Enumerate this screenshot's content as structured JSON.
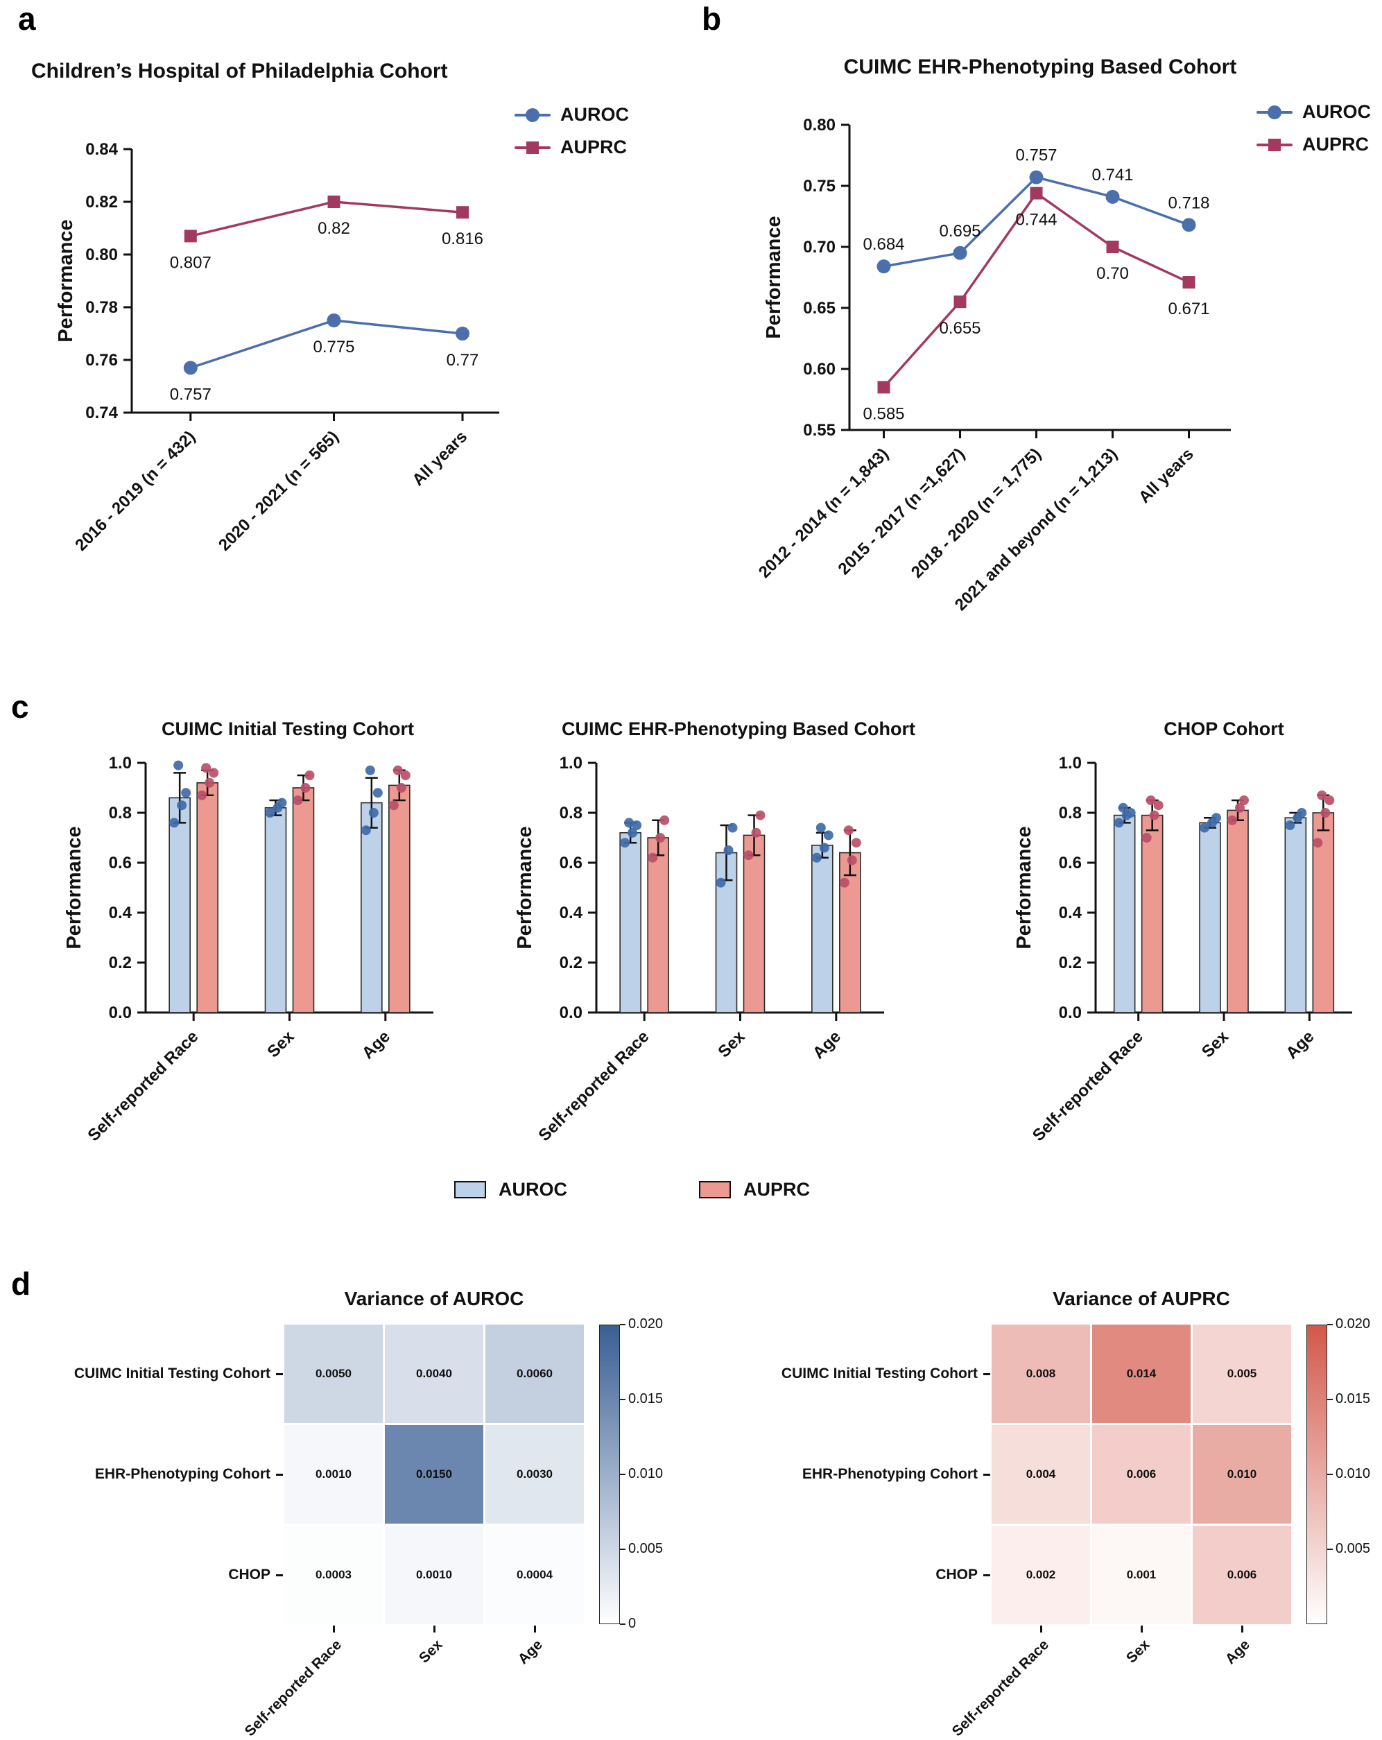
{
  "panel_labels": {
    "a": "a",
    "b": "b",
    "c": "c",
    "d": "d"
  },
  "colors": {
    "auroc_line": "#4a6fab",
    "auprc_line": "#a23a5e",
    "auroc_bar": "#bdd2e8",
    "auprc_bar": "#ec9991",
    "auroc_dot": "#3f6aa8",
    "auprc_dot": "#b94f68",
    "heatmap_blue_max": "#3a5f94",
    "heatmap_red_max": "#d2584a"
  },
  "legend_c": {
    "auroc": "AUROC",
    "auprc": "AUPRC"
  },
  "chart_data": [
    {
      "id": "a",
      "type": "line",
      "title": "Children’s Hospital of Philadelphia Cohort",
      "ylabel": "Performance",
      "ylim": [
        0.74,
        0.84
      ],
      "yticks": [
        "0.84",
        "0.82",
        "0.80",
        "0.78",
        "0.76",
        "0.74"
      ],
      "categories": [
        "2016 - 2019 (n = 432)",
        "2020 - 2021 (n = 565)",
        "All years"
      ],
      "legend_position": "top-right",
      "series": [
        {
          "name": "AUROC",
          "marker": "circle",
          "color": "#4a6fab",
          "values": [
            0.757,
            0.775,
            0.77
          ],
          "labels": [
            "0.757",
            "0.775",
            "0.77"
          ],
          "label_side": "below"
        },
        {
          "name": "AUPRC",
          "marker": "square",
          "color": "#a23a5e",
          "values": [
            0.807,
            0.82,
            0.816
          ],
          "labels": [
            "0.807",
            "0.82",
            "0.816"
          ],
          "label_side": "below"
        }
      ]
    },
    {
      "id": "b",
      "type": "line",
      "title": "CUIMC EHR-Phenotyping Based Cohort",
      "ylabel": "Performance",
      "ylim": [
        0.55,
        0.8
      ],
      "yticks": [
        "0.80",
        "0.75",
        "0.70",
        "0.65",
        "0.60",
        "0.55"
      ],
      "categories": [
        "2012 - 2014 (n = 1,843)",
        "2015 - 2017 (n =1,627)",
        "2018 - 2020 (n = 1,775)",
        "2021 and beyond (n = 1,213)",
        "All years"
      ],
      "legend_position": "top-right",
      "series": [
        {
          "name": "AUROC",
          "marker": "circle",
          "color": "#4a6fab",
          "values": [
            0.684,
            0.695,
            0.757,
            0.741,
            0.718
          ],
          "labels": [
            "0.684",
            "0.695",
            "0.757",
            "0.741",
            "0.718"
          ],
          "label_side": "above"
        },
        {
          "name": "AUPRC",
          "marker": "square",
          "color": "#a23a5e",
          "values": [
            0.585,
            0.655,
            0.744,
            0.7,
            0.671
          ],
          "labels": [
            "0.585",
            "0.655",
            "0.744",
            "0.70",
            "0.671"
          ],
          "label_side": "below"
        }
      ]
    },
    {
      "id": "c1",
      "type": "bar",
      "title": "CUIMC Initial Testing Cohort",
      "ylabel": "Performance",
      "ylim": [
        0,
        1.0
      ],
      "yticks": [
        "1.0",
        "0.8",
        "0.6",
        "0.4",
        "0.2",
        "0.0"
      ],
      "categories": [
        "Self-reported Race",
        "Sex",
        "Age"
      ],
      "series": [
        {
          "name": "AUROC",
          "color": "#bdd2e8",
          "dot_color": "#3f6aa8",
          "values": [
            0.86,
            0.82,
            0.84
          ],
          "errors": [
            0.1,
            0.03,
            0.1
          ],
          "points": [
            [
              0.76,
              0.83,
              0.88,
              0.99
            ],
            [
              0.8,
              0.82,
              0.84
            ],
            [
              0.73,
              0.8,
              0.88,
              0.97
            ]
          ]
        },
        {
          "name": "AUPRC",
          "color": "#ec9991",
          "dot_color": "#b94f68",
          "values": [
            0.92,
            0.9,
            0.91
          ],
          "errors": [
            0.05,
            0.05,
            0.06
          ],
          "points": [
            [
              0.87,
              0.92,
              0.96,
              0.98
            ],
            [
              0.85,
              0.9,
              0.95
            ],
            [
              0.83,
              0.9,
              0.95,
              0.97
            ]
          ]
        }
      ]
    },
    {
      "id": "c2",
      "type": "bar",
      "title": "CUIMC EHR-Phenotyping Based Cohort",
      "ylabel": "Performance",
      "ylim": [
        0,
        1.0
      ],
      "yticks": [
        "1.0",
        "0.8",
        "0.6",
        "0.4",
        "0.2",
        "0.0"
      ],
      "categories": [
        "Self-reported Race",
        "Sex",
        "Age"
      ],
      "series": [
        {
          "name": "AUROC",
          "color": "#bdd2e8",
          "dot_color": "#3f6aa8",
          "values": [
            0.72,
            0.64,
            0.67
          ],
          "errors": [
            0.04,
            0.11,
            0.05
          ],
          "points": [
            [
              0.68,
              0.72,
              0.75,
              0.76
            ],
            [
              0.52,
              0.65,
              0.74
            ],
            [
              0.62,
              0.66,
              0.71,
              0.74
            ]
          ]
        },
        {
          "name": "AUPRC",
          "color": "#ec9991",
          "dot_color": "#b94f68",
          "values": [
            0.7,
            0.71,
            0.64
          ],
          "errors": [
            0.07,
            0.08,
            0.09
          ],
          "points": [
            [
              0.62,
              0.7,
              0.77
            ],
            [
              0.63,
              0.72,
              0.79
            ],
            [
              0.52,
              0.61,
              0.68,
              0.73
            ]
          ]
        }
      ]
    },
    {
      "id": "c3",
      "type": "bar",
      "title": "CHOP Cohort",
      "ylabel": "Performance",
      "ylim": [
        0,
        1.0
      ],
      "yticks": [
        "1.0",
        "0.8",
        "0.6",
        "0.4",
        "0.2",
        "0.0"
      ],
      "categories": [
        "Self-reported Race",
        "Sex",
        "Age"
      ],
      "series": [
        {
          "name": "AUROC",
          "color": "#bdd2e8",
          "dot_color": "#3f6aa8",
          "values": [
            0.79,
            0.76,
            0.78
          ],
          "errors": [
            0.03,
            0.02,
            0.02
          ],
          "points": [
            [
              0.76,
              0.79,
              0.8,
              0.82
            ],
            [
              0.74,
              0.76,
              0.78
            ],
            [
              0.75,
              0.78,
              0.8
            ]
          ]
        },
        {
          "name": "AUPRC",
          "color": "#ec9991",
          "dot_color": "#b94f68",
          "values": [
            0.79,
            0.81,
            0.8
          ],
          "errors": [
            0.06,
            0.04,
            0.07
          ],
          "points": [
            [
              0.7,
              0.79,
              0.83,
              0.85
            ],
            [
              0.77,
              0.82,
              0.85
            ],
            [
              0.68,
              0.8,
              0.85,
              0.87
            ]
          ]
        }
      ]
    },
    {
      "id": "d1",
      "type": "heatmap",
      "title": "Variance of AUROC",
      "rows": [
        "CUIMC Initial Testing Cohort",
        "EHR-Phenotyping Cohort",
        "CHOP"
      ],
      "cols": [
        "Self-reported Race",
        "Sex",
        "Age"
      ],
      "values": [
        [
          0.005,
          0.004,
          0.006
        ],
        [
          0.001,
          0.015,
          0.003
        ],
        [
          0.0003,
          0.001,
          0.0004
        ]
      ],
      "labels": [
        [
          "0.0050",
          "0.0040",
          "0.0060"
        ],
        [
          "0.0010",
          "0.0150",
          "0.0030"
        ],
        [
          "0.0003",
          "0.0010",
          "0.0004"
        ]
      ],
      "scale_max": 0.02,
      "max_color": "#3a5f94",
      "colorbar_ticks": [
        {
          "label": "0.020",
          "value": 0.02
        },
        {
          "label": "0.015",
          "value": 0.015
        },
        {
          "label": "0.010",
          "value": 0.01
        },
        {
          "label": "0.005",
          "value": 0.005
        },
        {
          "label": "0",
          "value": 0
        }
      ]
    },
    {
      "id": "d2",
      "type": "heatmap",
      "title": "Variance of AUPRC",
      "rows": [
        "CUIMC Initial Testing Cohort",
        "EHR-Phenotyping Cohort",
        "CHOP"
      ],
      "cols": [
        "Self-reported Race",
        "Sex",
        "Age"
      ],
      "values": [
        [
          0.008,
          0.014,
          0.005
        ],
        [
          0.004,
          0.006,
          0.01
        ],
        [
          0.002,
          0.001,
          0.006
        ]
      ],
      "labels": [
        [
          "0.008",
          "0.014",
          "0.005"
        ],
        [
          "0.004",
          "0.006",
          "0.010"
        ],
        [
          "0.002",
          "0.001",
          "0.006"
        ]
      ],
      "scale_max": 0.02,
      "max_color": "#d2584a",
      "colorbar_ticks": [
        {
          "label": "0.020",
          "value": 0.02
        },
        {
          "label": "0.015",
          "value": 0.015
        },
        {
          "label": "0.010",
          "value": 0.01
        },
        {
          "label": "0.005",
          "value": 0.005
        }
      ]
    }
  ]
}
